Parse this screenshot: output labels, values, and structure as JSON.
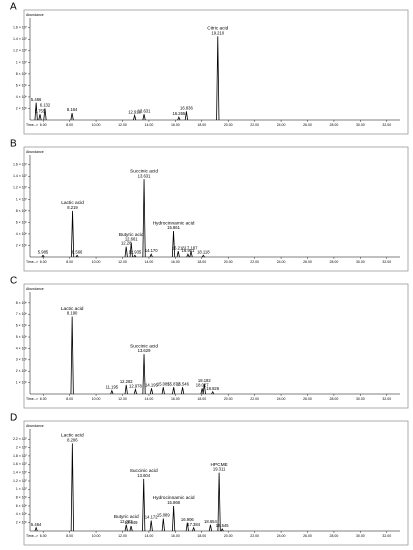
{
  "chart_data": [
    {
      "type": "chromatogram",
      "panel_label": "A",
      "ylabel": "Abundance",
      "xlabel": "Time-->",
      "color": "#000000",
      "xlim": [
        5,
        33
      ],
      "xticks": [
        {
          "value": 6,
          "label": "6.00"
        },
        {
          "value": 8,
          "label": "8.00"
        },
        {
          "value": 10,
          "label": "10.00"
        },
        {
          "value": 12,
          "label": "12.00"
        },
        {
          "value": 14,
          "label": "14.00"
        },
        {
          "value": 16,
          "label": "16.00"
        },
        {
          "value": 18,
          "label": "18.00"
        },
        {
          "value": 20,
          "label": "20.00"
        },
        {
          "value": 22,
          "label": "22.00"
        },
        {
          "value": 24,
          "label": "24.00"
        },
        {
          "value": 26,
          "label": "26.00"
        },
        {
          "value": 28,
          "label": "28.00"
        },
        {
          "value": 30,
          "label": "30.00"
        },
        {
          "value": 32,
          "label": "32.00"
        }
      ],
      "ylim": [
        0,
        17000000
      ],
      "yticks": [
        {
          "value": 2000000,
          "label": "2 × 10⁶"
        },
        {
          "value": 4000000,
          "label": "4 × 10⁶"
        },
        {
          "value": 6000000,
          "label": "6 × 10⁶"
        },
        {
          "value": 8000000,
          "label": "8 × 10⁶"
        },
        {
          "value": 10000000,
          "label": "1 × 10⁷"
        },
        {
          "value": 12000000,
          "label": "1.2 × 10⁷"
        },
        {
          "value": 14000000,
          "label": "1.4 × 10⁷"
        },
        {
          "value": 16000000,
          "label": "1.6 × 10⁷"
        }
      ],
      "peaks": {
        "x": [
          5.466,
          5.755,
          6.132,
          8.184,
          12.918,
          13.631,
          16.265,
          16.836,
          19.21
        ],
        "x_labels": [
          "5.466",
          "5.755",
          "6.132",
          "8.184",
          "12.918",
          "13.631",
          "16.265",
          "16.836",
          "19.210"
        ],
        "values": [
          3000000,
          1000000,
          2000000,
          1200000,
          800000,
          1000000,
          500000,
          1500000,
          14500000
        ],
        "names": [
          null,
          null,
          null,
          null,
          null,
          null,
          null,
          null,
          "Citric acid"
        ]
      }
    },
    {
      "type": "chromatogram",
      "panel_label": "B",
      "ylabel": "Abundance",
      "xlabel": "Time-->",
      "color": "#000000",
      "xlim": [
        5,
        33
      ],
      "xticks": [
        {
          "value": 6,
          "label": "6.00"
        },
        {
          "value": 8,
          "label": "8.00"
        },
        {
          "value": 10,
          "label": "10.00"
        },
        {
          "value": 12,
          "label": "12.00"
        },
        {
          "value": 14,
          "label": "14.00"
        },
        {
          "value": 16,
          "label": "16.00"
        },
        {
          "value": 18,
          "label": "18.00"
        },
        {
          "value": 20,
          "label": "20.00"
        },
        {
          "value": 22,
          "label": "22.00"
        },
        {
          "value": 24,
          "label": "24.00"
        },
        {
          "value": 26,
          "label": "26.00"
        },
        {
          "value": 28,
          "label": "28.00"
        },
        {
          "value": 30,
          "label": "30.00"
        },
        {
          "value": 32,
          "label": "32.00"
        }
      ],
      "ylim": [
        0,
        17000000
      ],
      "yticks": [
        {
          "value": 2000000,
          "label": "2 × 10⁶"
        },
        {
          "value": 4000000,
          "label": "4 × 10⁶"
        },
        {
          "value": 6000000,
          "label": "6 × 10⁶"
        },
        {
          "value": 8000000,
          "label": "8 × 10⁶"
        },
        {
          "value": 10000000,
          "label": "1 × 10⁷"
        },
        {
          "value": 12000000,
          "label": "1.2 × 10⁷"
        },
        {
          "value": 14000000,
          "label": "1.4 × 10⁷"
        },
        {
          "value": 16000000,
          "label": "1.6 × 10⁷"
        }
      ],
      "peaks": {
        "x": [
          5.985,
          8.219,
          8.566,
          12.28,
          12.661,
          12.935,
          13.631,
          14.17,
          15.861,
          16.218,
          16.951,
          17.187,
          18.118
        ],
        "x_labels": [
          "5.985",
          "8.219",
          "8.566",
          "12.28",
          "12.661",
          "12.935",
          "13.631",
          "14.170",
          "15.861",
          "16.218",
          "16.951",
          "17.187",
          "18.118"
        ],
        "values": [
          300000,
          8000000,
          300000,
          1800000,
          2500000,
          300000,
          13500000,
          500000,
          4500000,
          1000000,
          500000,
          1000000,
          300000
        ],
        "names": [
          null,
          "Lactic acid",
          null,
          null,
          "Butyric acid",
          null,
          "Succinic acid",
          null,
          "Hydrocinnamic acid",
          null,
          null,
          null,
          null
        ]
      }
    },
    {
      "type": "chromatogram",
      "panel_label": "C",
      "ylabel": "Abundance",
      "xlabel": "Time-->",
      "color": "#000000",
      "xlim": [
        5,
        33
      ],
      "xticks": [
        {
          "value": 6,
          "label": "6.00"
        },
        {
          "value": 8,
          "label": "8.00"
        },
        {
          "value": 10,
          "label": "10.00"
        },
        {
          "value": 12,
          "label": "12.00"
        },
        {
          "value": 14,
          "label": "14.00"
        },
        {
          "value": 16,
          "label": "16.00"
        },
        {
          "value": 18,
          "label": "18.00"
        },
        {
          "value": 20,
          "label": "20.00"
        },
        {
          "value": 22,
          "label": "22.00"
        },
        {
          "value": 24,
          "label": "24.00"
        },
        {
          "value": 26,
          "label": "26.00"
        },
        {
          "value": 28,
          "label": "28.00"
        },
        {
          "value": 30,
          "label": "30.00"
        },
        {
          "value": 32,
          "label": "32.00"
        }
      ],
      "ylim": [
        0,
        8600000
      ],
      "yticks": [
        {
          "value": 1000000,
          "label": "1 × 10⁶"
        },
        {
          "value": 2000000,
          "label": "2 × 10⁶"
        },
        {
          "value": 3000000,
          "label": "3 × 10⁶"
        },
        {
          "value": 4000000,
          "label": "4 × 10⁶"
        },
        {
          "value": 5000000,
          "label": "5 × 10⁶"
        },
        {
          "value": 6000000,
          "label": "6 × 10⁶"
        },
        {
          "value": 7000000,
          "label": "7 × 10⁶"
        },
        {
          "value": 8000000,
          "label": "8 × 10⁶"
        }
      ],
      "peaks": {
        "x": [
          8.19,
          11.195,
          12.282,
          12.978,
          13.629,
          14.195,
          15.085,
          15.872,
          16.546,
          18.027,
          18.192,
          18.826
        ],
        "x_labels": [
          "8.190",
          "11.195",
          "12.282",
          "12.978",
          "13.629",
          "14.195",
          "15.085",
          "15.872",
          "16.546",
          "18.027",
          "18.192",
          "18.826"
        ],
        "values": [
          6800000,
          300000,
          800000,
          400000,
          3500000,
          500000,
          600000,
          600000,
          600000,
          500000,
          900000,
          200000
        ],
        "names": [
          "Lactic acid",
          null,
          null,
          null,
          "Succinic acid",
          null,
          null,
          null,
          null,
          null,
          null,
          null
        ]
      }
    },
    {
      "type": "chromatogram",
      "panel_label": "D",
      "ylabel": "Abundance",
      "xlabel": "Time-->",
      "color": "#000000",
      "xlim": [
        5,
        33
      ],
      "xticks": [
        {
          "value": 6,
          "label": "6.00"
        },
        {
          "value": 8,
          "label": "8.00"
        },
        {
          "value": 10,
          "label": "10.00"
        },
        {
          "value": 12,
          "label": "12.00"
        },
        {
          "value": 14,
          "label": "14.00"
        },
        {
          "value": 16,
          "label": "16.00"
        },
        {
          "value": 18,
          "label": "18.00"
        },
        {
          "value": 20,
          "label": "20.00"
        },
        {
          "value": 22,
          "label": "22.00"
        },
        {
          "value": 24,
          "label": "24.00"
        },
        {
          "value": 26,
          "label": "26.00"
        },
        {
          "value": 28,
          "label": "28.00"
        },
        {
          "value": 30,
          "label": "30.00"
        },
        {
          "value": 32,
          "label": "32.00"
        }
      ],
      "ylim": [
        0,
        23500000
      ],
      "yticks": [
        {
          "value": 2000000,
          "label": "2 × 10⁶"
        },
        {
          "value": 4000000,
          "label": "4 × 10⁶"
        },
        {
          "value": 6000000,
          "label": "6 × 10⁶"
        },
        {
          "value": 8000000,
          "label": "8 × 10⁶"
        },
        {
          "value": 10000000,
          "label": "1 × 10⁷"
        },
        {
          "value": 12000000,
          "label": "1.2 × 10⁷"
        },
        {
          "value": 14000000,
          "label": "1.4 × 10⁷"
        },
        {
          "value": 16000000,
          "label": "1.6 × 10⁷"
        },
        {
          "value": 18000000,
          "label": "1.8 × 10⁷"
        },
        {
          "value": 20000000,
          "label": "2 × 10⁷"
        },
        {
          "value": 22000000,
          "label": "2.2 × 10⁷"
        }
      ],
      "peaks": {
        "x": [
          5.464,
          8.206,
          12.283,
          12.649,
          13.604,
          14.172,
          15.089,
          15.868,
          16.906,
          17.384,
          18.654,
          19.311,
          19.545
        ],
        "x_labels": [
          "5.464",
          "8.206",
          "12.283",
          "12.649",
          "13.604",
          "14.172",
          "15.089",
          "15.868",
          "16.906",
          "17.384",
          "18.654",
          "19.311",
          "19.545"
        ],
        "values": [
          800000,
          21000000,
          1500000,
          1200000,
          12500000,
          2500000,
          3000000,
          6000000,
          2000000,
          800000,
          1500000,
          14000000,
          500000
        ],
        "names": [
          null,
          "Lactic acid",
          "Butyric acid",
          null,
          "Succinic acid",
          null,
          null,
          "Hydrocinnamic acid",
          null,
          null,
          null,
          "HPCME",
          null
        ]
      }
    }
  ]
}
